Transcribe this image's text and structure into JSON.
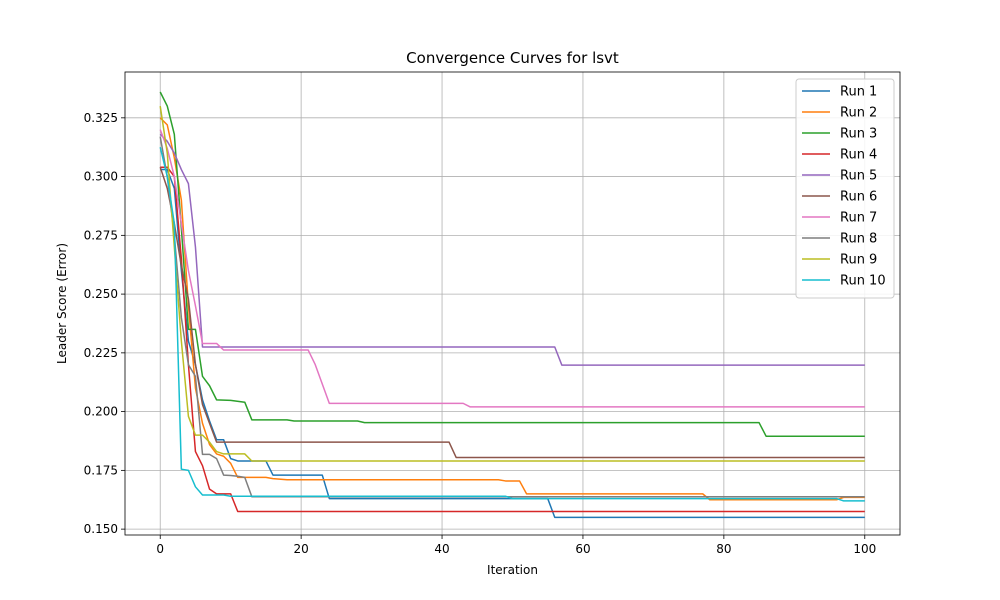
{
  "chart_data": {
    "type": "line",
    "title": "Convergence Curves for lsvt",
    "xlabel": "Iteration",
    "ylabel": "Leader Score (Error)",
    "xlim": [
      -5,
      105
    ],
    "ylim": [
      0.1475,
      0.3445
    ],
    "xticks": [
      0,
      20,
      40,
      60,
      80,
      100
    ],
    "yticks": [
      0.15,
      0.175,
      0.2,
      0.225,
      0.25,
      0.275,
      0.3,
      0.325
    ],
    "ytick_labels": [
      "0.150",
      "0.175",
      "0.200",
      "0.225",
      "0.250",
      "0.275",
      "0.300",
      "0.325"
    ],
    "grid": true,
    "legend_position": "top-right",
    "series": [
      {
        "name": "Run 1",
        "color": "#1f77b4",
        "points": [
          [
            0,
            0.303
          ],
          [
            1,
            0.303
          ],
          [
            2,
            0.295
          ],
          [
            3,
            0.26
          ],
          [
            4,
            0.23
          ],
          [
            5,
            0.22
          ],
          [
            6,
            0.205
          ],
          [
            7,
            0.196
          ],
          [
            8,
            0.188
          ],
          [
            9,
            0.188
          ],
          [
            10,
            0.18
          ],
          [
            11,
            0.179
          ],
          [
            12,
            0.179
          ],
          [
            14,
            0.179
          ],
          [
            15,
            0.179
          ],
          [
            16,
            0.173
          ],
          [
            23,
            0.173
          ],
          [
            24,
            0.163
          ],
          [
            55,
            0.163
          ],
          [
            56,
            0.155
          ],
          [
            100,
            0.155
          ]
        ]
      },
      {
        "name": "Run 2",
        "color": "#ff7f0e",
        "points": [
          [
            0,
            0.325
          ],
          [
            1,
            0.322
          ],
          [
            2,
            0.308
          ],
          [
            3,
            0.29
          ],
          [
            4,
            0.245
          ],
          [
            5,
            0.21
          ],
          [
            6,
            0.195
          ],
          [
            7,
            0.186
          ],
          [
            8,
            0.182
          ],
          [
            9,
            0.181
          ],
          [
            10,
            0.178
          ],
          [
            11,
            0.172
          ],
          [
            12,
            0.172
          ],
          [
            15,
            0.172
          ],
          [
            16,
            0.1715
          ],
          [
            18,
            0.171
          ],
          [
            48,
            0.171
          ],
          [
            49,
            0.1705
          ],
          [
            51,
            0.1705
          ],
          [
            52,
            0.165
          ],
          [
            77,
            0.165
          ],
          [
            78,
            0.1625
          ],
          [
            96,
            0.1625
          ],
          [
            97,
            0.1635
          ],
          [
            100,
            0.1635
          ]
        ]
      },
      {
        "name": "Run 3",
        "color": "#2ca02c",
        "points": [
          [
            0,
            0.336
          ],
          [
            1,
            0.33
          ],
          [
            2,
            0.318
          ],
          [
            3,
            0.278
          ],
          [
            4,
            0.235
          ],
          [
            5,
            0.235
          ],
          [
            6,
            0.215
          ],
          [
            7,
            0.211
          ],
          [
            8,
            0.205
          ],
          [
            10,
            0.2048
          ],
          [
            12,
            0.204
          ],
          [
            13,
            0.1965
          ],
          [
            18,
            0.1965
          ],
          [
            19,
            0.196
          ],
          [
            28,
            0.196
          ],
          [
            29,
            0.1953
          ],
          [
            85,
            0.1953
          ],
          [
            86,
            0.1895
          ],
          [
            100,
            0.1895
          ]
        ]
      },
      {
        "name": "Run 4",
        "color": "#d62728",
        "points": [
          [
            0,
            0.304
          ],
          [
            1,
            0.304
          ],
          [
            2,
            0.3
          ],
          [
            3,
            0.265
          ],
          [
            4,
            0.22
          ],
          [
            5,
            0.183
          ],
          [
            6,
            0.177
          ],
          [
            7,
            0.167
          ],
          [
            8,
            0.165
          ],
          [
            9,
            0.165
          ],
          [
            10,
            0.165
          ],
          [
            11,
            0.1575
          ],
          [
            100,
            0.1575
          ]
        ]
      },
      {
        "name": "Run 5",
        "color": "#9467bd",
        "points": [
          [
            0,
            0.318
          ],
          [
            1,
            0.315
          ],
          [
            2,
            0.31
          ],
          [
            3,
            0.303
          ],
          [
            4,
            0.297
          ],
          [
            5,
            0.27
          ],
          [
            6,
            0.2275
          ],
          [
            56,
            0.2275
          ],
          [
            57,
            0.2198
          ],
          [
            100,
            0.2198
          ]
        ]
      },
      {
        "name": "Run 6",
        "color": "#8c564b",
        "points": [
          [
            0,
            0.304
          ],
          [
            1,
            0.295
          ],
          [
            2,
            0.28
          ],
          [
            3,
            0.262
          ],
          [
            4,
            0.248
          ],
          [
            5,
            0.22
          ],
          [
            6,
            0.203
          ],
          [
            7,
            0.195
          ],
          [
            8,
            0.187
          ],
          [
            41,
            0.187
          ],
          [
            42,
            0.1805
          ],
          [
            100,
            0.1805
          ]
        ]
      },
      {
        "name": "Run 7",
        "color": "#e377c2",
        "points": [
          [
            0,
            0.32
          ],
          [
            1,
            0.312
          ],
          [
            2,
            0.3
          ],
          [
            3,
            0.28
          ],
          [
            4,
            0.26
          ],
          [
            5,
            0.245
          ],
          [
            6,
            0.229
          ],
          [
            8,
            0.229
          ],
          [
            9,
            0.2262
          ],
          [
            21,
            0.2262
          ],
          [
            22,
            0.22
          ],
          [
            24,
            0.2035
          ],
          [
            43,
            0.2035
          ],
          [
            44,
            0.202
          ],
          [
            100,
            0.202
          ]
        ]
      },
      {
        "name": "Run 8",
        "color": "#7f7f7f",
        "points": [
          [
            0,
            0.317
          ],
          [
            1,
            0.3
          ],
          [
            2,
            0.275
          ],
          [
            3,
            0.24
          ],
          [
            4,
            0.22
          ],
          [
            5,
            0.215
          ],
          [
            6,
            0.1818
          ],
          [
            7,
            0.1818
          ],
          [
            8,
            0.18
          ],
          [
            9,
            0.173
          ],
          [
            10,
            0.1728
          ],
          [
            11,
            0.1725
          ],
          [
            12,
            0.172
          ],
          [
            13,
            0.1638
          ],
          [
            100,
            0.1638
          ]
        ]
      },
      {
        "name": "Run 9",
        "color": "#bcbd22",
        "points": [
          [
            0,
            0.33
          ],
          [
            1,
            0.31
          ],
          [
            2,
            0.27
          ],
          [
            3,
            0.23
          ],
          [
            4,
            0.198
          ],
          [
            5,
            0.19
          ],
          [
            6,
            0.19
          ],
          [
            7,
            0.187
          ],
          [
            8,
            0.183
          ],
          [
            9,
            0.182
          ],
          [
            12,
            0.182
          ],
          [
            13,
            0.179
          ],
          [
            100,
            0.179
          ]
        ]
      },
      {
        "name": "Run 10",
        "color": "#17becf",
        "points": [
          [
            0,
            0.3125
          ],
          [
            1,
            0.3
          ],
          [
            2,
            0.28
          ],
          [
            3,
            0.1755
          ],
          [
            4,
            0.175
          ],
          [
            5,
            0.168
          ],
          [
            6,
            0.1645
          ],
          [
            9,
            0.1645
          ],
          [
            10,
            0.164
          ],
          [
            49,
            0.164
          ],
          [
            50,
            0.163
          ],
          [
            96,
            0.163
          ],
          [
            97,
            0.162
          ],
          [
            100,
            0.162
          ]
        ]
      }
    ]
  }
}
